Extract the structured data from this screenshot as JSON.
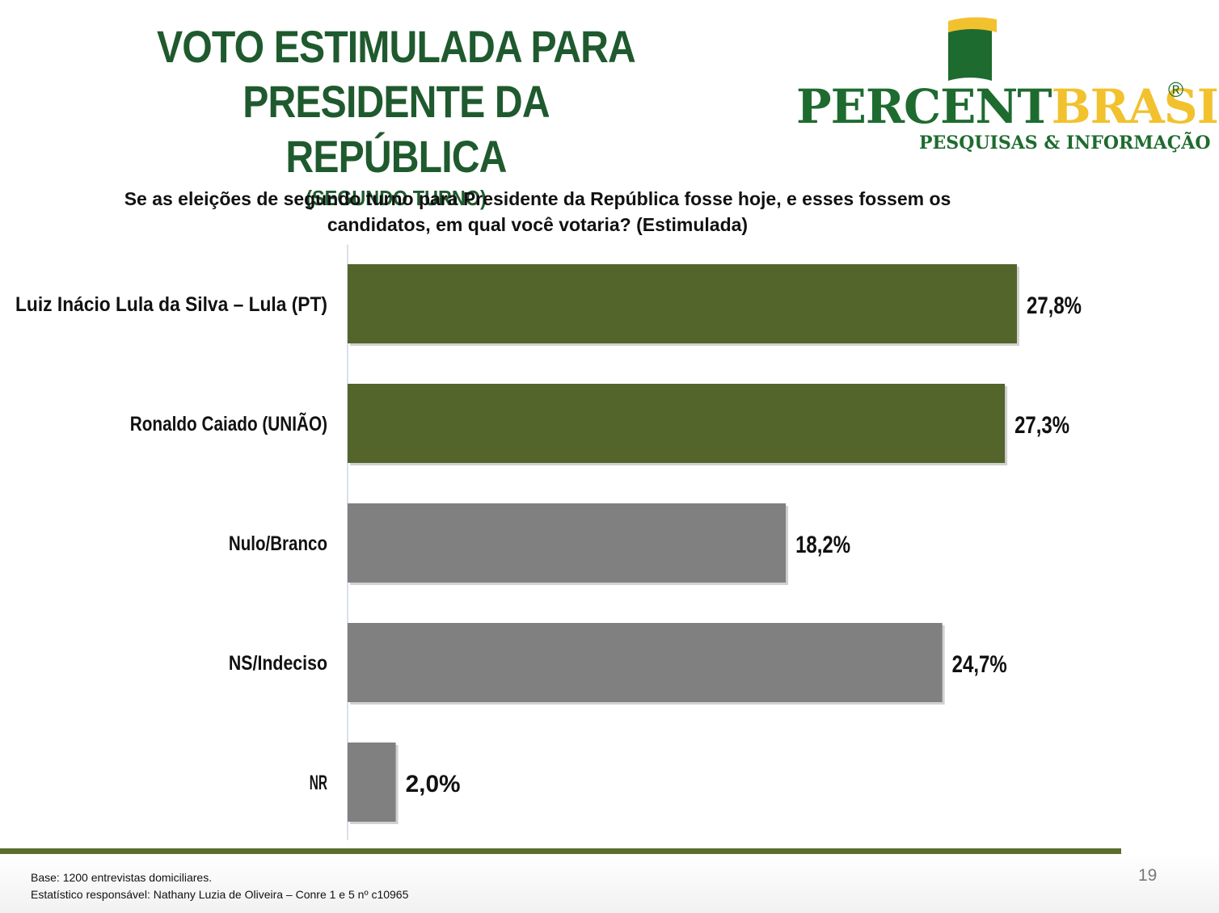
{
  "title": {
    "line1": "VOTO ESTIMULADA PARA",
    "line2": "PRESIDENTE DA REPÚBLICA",
    "subtitle": "(SEGUNDO TURNO)"
  },
  "logo": {
    "name_part1": "PERCENT",
    "name_part2": "BRASIL",
    "registered": "®",
    "tagline": "PESQUISAS & INFORMAÇÃO"
  },
  "question": {
    "line1": "Se as eleições de segundo turno para Presidente da República fosse hoje, e esses fossem os",
    "line2": "candidatos, em qual você votaria? (Estimulada)"
  },
  "chart_data": {
    "type": "bar",
    "orientation": "horizontal",
    "categories": [
      "Luiz Inácio Lula da Silva – Lula (PT)",
      "Ronaldo Caiado (UNIÃO)",
      "Nulo/Branco",
      "NS/Indeciso",
      "NR"
    ],
    "values": [
      27.8,
      27.3,
      18.2,
      24.7,
      2.0
    ],
    "data_labels": [
      "27,8%",
      "27,3%",
      "18,2%",
      "24,7%",
      "2,0%"
    ],
    "colors": [
      "#53652b",
      "#53652b",
      "#808080",
      "#808080",
      "#808080"
    ],
    "xlim": [
      0,
      30
    ],
    "grid": false,
    "legend": "none"
  },
  "footer": {
    "base": "Base: 1200 entrevistas domiciliares.",
    "statistician": "Estatístico responsável: Nathany Luzia de Oliveira – Conre 1 e 5 nº c10965",
    "page_number": "19"
  },
  "colors": {
    "title": "#1f5a2e",
    "accent_line": "#5a6e2e",
    "logo_green": "#1e6b2f",
    "logo_yellow": "#f2c12e"
  }
}
